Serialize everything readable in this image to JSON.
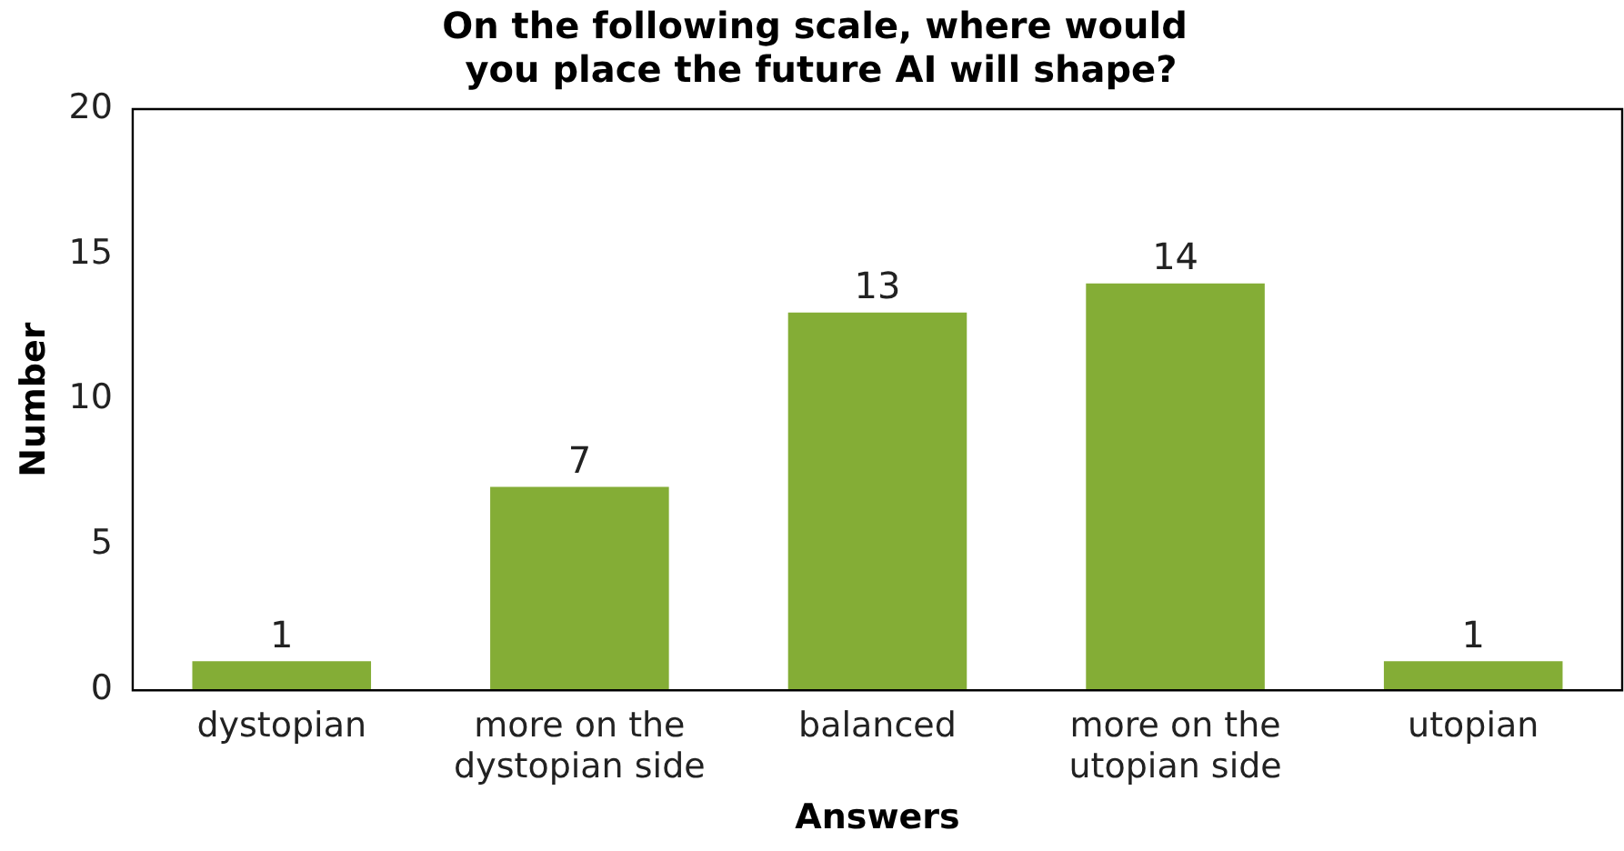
{
  "chart_data": {
    "type": "bar",
    "title": "On the following scale, where would\n you place the future AI will shape?",
    "xlabel": "Answers",
    "ylabel": "Number",
    "categories": [
      "dystopian",
      "more on the\ndystopian side",
      "balanced",
      "more on the\nutopian side",
      "utopian"
    ],
    "values": [
      1,
      7,
      13,
      14,
      1
    ],
    "color": "#84ad36",
    "ylim": [
      0,
      20
    ],
    "yticks": [
      0,
      5,
      10,
      15,
      20
    ],
    "grid": false,
    "legend": false,
    "data_labels": true
  }
}
